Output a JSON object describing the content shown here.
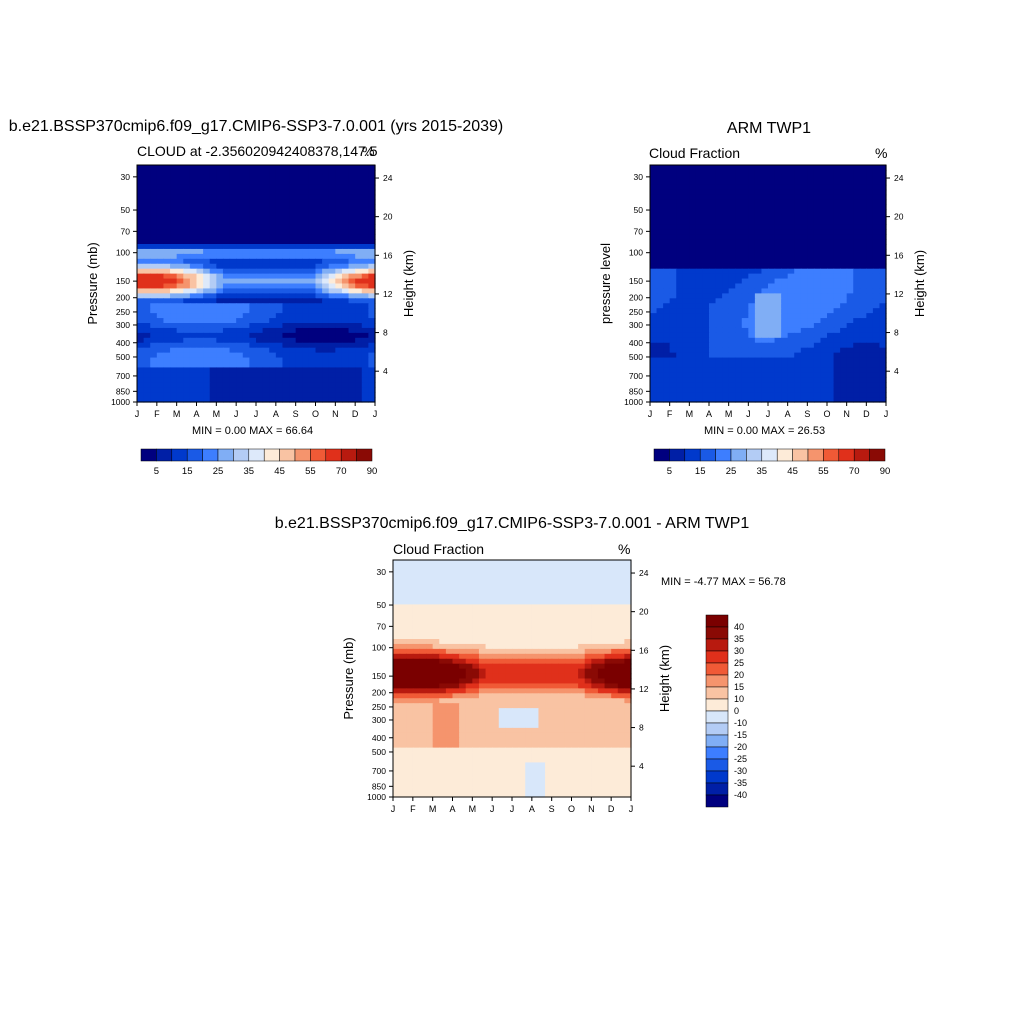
{
  "colors": {
    "blue_red_14": [
      "#00007f",
      "#001fa6",
      "#0039cc",
      "#1a5ae6",
      "#3d7eff",
      "#80aef5",
      "#b3ccf5",
      "#dde9fa",
      "#fdebd8",
      "#f9c3a3",
      "#f5946d",
      "#f05a36",
      "#e0301b",
      "#b81a0f",
      "#8a0a05"
    ],
    "diff_scale": [
      "#00007f",
      "#001fa6",
      "#0039cc",
      "#1a5ae6",
      "#3d7eff",
      "#80aef5",
      "#b3ccf5",
      "#d8e7fa",
      "#fdebd8",
      "#f9c3a3",
      "#f5946d",
      "#f05a36",
      "#e0301b",
      "#b81a0f",
      "#8a0a05",
      "#7a0000"
    ]
  },
  "chart_data": [
    {
      "type": "heatmap",
      "title": "b.e21.BSSP370cmip6.f09_g17.CMIP6-SSP3-7.0.001 (yrs 2015-2039)",
      "subtitle_left": "CLOUD at -2.356020942408378,147.5",
      "subtitle_right": "%",
      "ylabel": "Pressure (mb)",
      "ylabel_right": "Height (km)",
      "x_ticks": [
        "J",
        "F",
        "M",
        "A",
        "M",
        "J",
        "J",
        "A",
        "S",
        "O",
        "N",
        "D",
        "J"
      ],
      "y_ticks": [
        "30",
        "50",
        "70",
        "100",
        "150",
        "200",
        "250",
        "300",
        "400",
        "500",
        "700",
        "850",
        "1000"
      ],
      "y_ticks_right": [
        "24",
        "20",
        "16",
        "12",
        "8",
        "4"
      ],
      "minmax": "MIN =   0.00 MAX =  66.64",
      "colorbar_labels": [
        "5",
        "15",
        "25",
        "35",
        "45",
        "55",
        "70",
        "90"
      ],
      "min": 0.0,
      "max": 66.64
    },
    {
      "type": "heatmap",
      "title": "ARM TWP1",
      "subtitle_left": "Cloud Fraction",
      "subtitle_right": "%",
      "ylabel": "pressure level",
      "ylabel_right": "Height (km)",
      "x_ticks": [
        "J",
        "F",
        "M",
        "A",
        "M",
        "J",
        "J",
        "A",
        "S",
        "O",
        "N",
        "D",
        "J"
      ],
      "y_ticks": [
        "30",
        "50",
        "70",
        "100",
        "150",
        "200",
        "250",
        "300",
        "400",
        "500",
        "700",
        "850",
        "1000"
      ],
      "y_ticks_right": [
        "24",
        "20",
        "16",
        "12",
        "8",
        "4"
      ],
      "minmax": "MIN =   0.00 MAX =  26.53",
      "colorbar_labels": [
        "5",
        "15",
        "25",
        "35",
        "45",
        "55",
        "70",
        "90"
      ],
      "min": 0.0,
      "max": 26.53
    },
    {
      "type": "heatmap",
      "title": "b.e21.BSSP370cmip6.f09_g17.CMIP6-SSP3-7.0.001 - ARM TWP1",
      "subtitle_left": "Cloud Fraction",
      "subtitle_right": "%",
      "ylabel": "Pressure (mb)",
      "ylabel_right": "Height (km)",
      "x_ticks": [
        "J",
        "F",
        "M",
        "A",
        "M",
        "J",
        "J",
        "A",
        "S",
        "O",
        "N",
        "D",
        "J"
      ],
      "y_ticks": [
        "30",
        "50",
        "70",
        "100",
        "150",
        "200",
        "250",
        "300",
        "400",
        "500",
        "700",
        "850",
        "1000"
      ],
      "y_ticks_right": [
        "24",
        "20",
        "16",
        "12",
        "8",
        "4"
      ],
      "minmax": "MIN =  -4.77 MAX =  56.78",
      "colorbar_labels": [
        "40",
        "35",
        "30",
        "25",
        "20",
        "15",
        "10",
        "0",
        "-10",
        "-15",
        "-20",
        "-25",
        "-30",
        "-35",
        "-40"
      ],
      "min": -4.77,
      "max": 56.78
    }
  ]
}
